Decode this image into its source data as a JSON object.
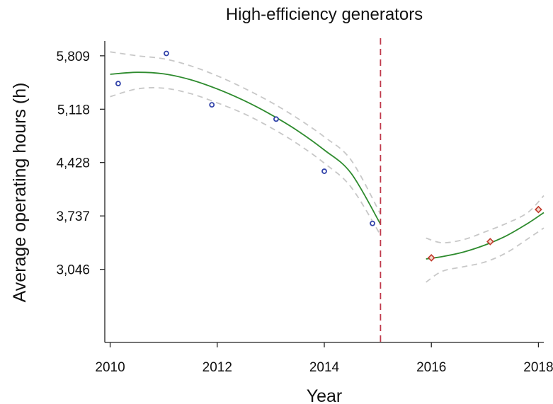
{
  "chart_data": {
    "type": "scatter",
    "title": "High-efficiency generators",
    "xlabel": "Year",
    "ylabel": "Average operating hours (h)",
    "xlim": [
      2009.9,
      2018.1
    ],
    "ylim": [
      2100,
      6000
    ],
    "xticks": [
      2010,
      2012,
      2014,
      2016,
      2018
    ],
    "yticks": [
      3046,
      3737,
      4428,
      5118,
      5809
    ],
    "ytick_labels": [
      "3,046",
      "3,737",
      "4,428",
      "5,118",
      "5,809"
    ],
    "break_x": 2015.05,
    "series": [
      {
        "marker": "circle",
        "color": "#3344aa",
        "points": [
          [
            2010.15,
            5450
          ],
          [
            2011.05,
            5840
          ],
          [
            2011.9,
            5175
          ],
          [
            2013.1,
            4990
          ],
          [
            2014.0,
            4315
          ],
          [
            2014.9,
            3640
          ]
        ]
      },
      {
        "marker": "diamond",
        "color": "#c0392b",
        "points": [
          [
            2016.0,
            3195
          ],
          [
            2017.1,
            3405
          ],
          [
            2018.0,
            3820
          ]
        ]
      }
    ],
    "fits": [
      {
        "color": "#2e8b2e",
        "points": [
          [
            2010.0,
            5570
          ],
          [
            2010.5,
            5595
          ],
          [
            2011.0,
            5575
          ],
          [
            2011.5,
            5500
          ],
          [
            2012.0,
            5380
          ],
          [
            2012.5,
            5230
          ],
          [
            2013.0,
            5050
          ],
          [
            2013.5,
            4840
          ],
          [
            2014.0,
            4590
          ],
          [
            2014.5,
            4290
          ],
          [
            2015.05,
            3630
          ]
        ],
        "upper": [
          [
            2010.0,
            5860
          ],
          [
            2010.5,
            5810
          ],
          [
            2011.0,
            5770
          ],
          [
            2011.5,
            5680
          ],
          [
            2012.0,
            5550
          ],
          [
            2012.5,
            5390
          ],
          [
            2013.0,
            5210
          ],
          [
            2013.5,
            5000
          ],
          [
            2014.0,
            4760
          ],
          [
            2014.5,
            4460
          ],
          [
            2015.05,
            3760
          ]
        ],
        "lower": [
          [
            2010.0,
            5280
          ],
          [
            2010.5,
            5380
          ],
          [
            2011.0,
            5390
          ],
          [
            2011.5,
            5320
          ],
          [
            2012.0,
            5200
          ],
          [
            2012.5,
            5060
          ],
          [
            2013.0,
            4880
          ],
          [
            2013.5,
            4670
          ],
          [
            2014.0,
            4420
          ],
          [
            2014.5,
            4110
          ],
          [
            2015.05,
            3490
          ]
        ]
      },
      {
        "color": "#2e8b2e",
        "points": [
          [
            2015.9,
            3180
          ],
          [
            2016.2,
            3210
          ],
          [
            2016.6,
            3270
          ],
          [
            2017.0,
            3360
          ],
          [
            2017.4,
            3480
          ],
          [
            2017.8,
            3640
          ],
          [
            2018.1,
            3780
          ]
        ],
        "upper": [
          [
            2015.9,
            3450
          ],
          [
            2016.2,
            3390
          ],
          [
            2016.6,
            3430
          ],
          [
            2017.0,
            3530
          ],
          [
            2017.4,
            3640
          ],
          [
            2017.8,
            3780
          ],
          [
            2018.1,
            4000
          ]
        ],
        "lower": [
          [
            2015.9,
            2880
          ],
          [
            2016.2,
            3020
          ],
          [
            2016.6,
            3080
          ],
          [
            2017.0,
            3140
          ],
          [
            2017.4,
            3260
          ],
          [
            2017.8,
            3440
          ],
          [
            2018.1,
            3580
          ]
        ]
      }
    ]
  }
}
